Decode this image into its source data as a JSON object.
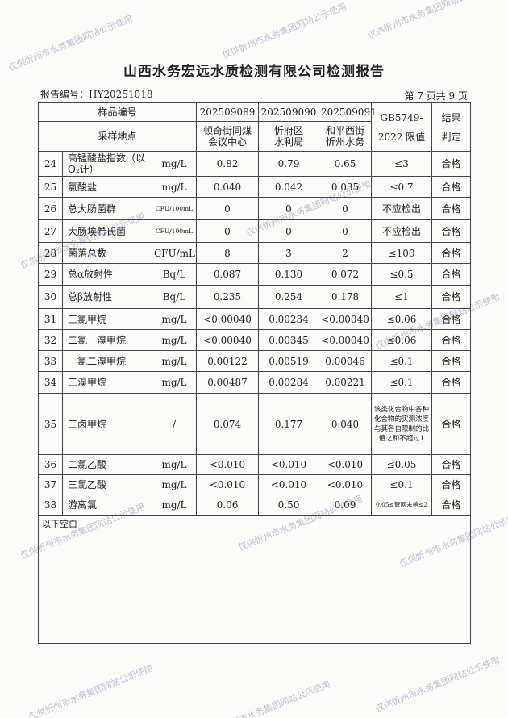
{
  "title": "山西水务宏远水质检测有限公司检测报告",
  "report_no": "报告编号：HY20251018",
  "page_info": "第 7 页共 9 页",
  "watermark": "仅供忻州市水务集团网站公示使用",
  "header": {
    "sample_no_label": "样品编号",
    "site_label": "采样地点",
    "samples": [
      "202509089",
      "202509090",
      "202509091"
    ],
    "sites": [
      [
        "顿奇街同煤",
        "会议中心"
      ],
      [
        "忻府区",
        "水利局"
      ],
      [
        "和平西街",
        "忻州水务"
      ]
    ],
    "limit_label": [
      "GB5749-",
      "2022 限值"
    ],
    "result_label": [
      "结果",
      "判定"
    ]
  },
  "rows": [
    {
      "no": "24",
      "name": "高锰酸盐指数（以O₂计）",
      "unit": "mg/L",
      "v": [
        "0.82",
        "0.79",
        "0.65"
      ],
      "limit": "≤3",
      "result": "合格"
    },
    {
      "no": "25",
      "name": "氯酸盐",
      "unit": "mg/L",
      "v": [
        "0.040",
        "0.042",
        "0.035"
      ],
      "limit": "≤0.7",
      "result": "合格"
    },
    {
      "no": "26",
      "name": "总大肠菌群",
      "unit": "CFU/100mL",
      "v": [
        "0",
        "0",
        "0"
      ],
      "limit": "不应检出",
      "result": "合格"
    },
    {
      "no": "27",
      "name": "大肠埃希氏菌",
      "unit": "CFU/100mL",
      "v": [
        "0",
        "0",
        "0"
      ],
      "limit": "不应检出",
      "result": "合格"
    },
    {
      "no": "28",
      "name": "菌落总数",
      "unit": "CFU/mL",
      "v": [
        "8",
        "3",
        "2"
      ],
      "limit": "≤100",
      "result": "合格"
    },
    {
      "no": "29",
      "name": "总α放射性",
      "unit": "Bq/L",
      "v": [
        "0.087",
        "0.130",
        "0.072"
      ],
      "limit": "≤0.5",
      "result": "合格"
    },
    {
      "no": "30",
      "name": "总β放射性",
      "unit": "Bq/L",
      "v": [
        "0.235",
        "0.254",
        "0.178"
      ],
      "limit": "≤1",
      "result": "合格"
    },
    {
      "no": "31",
      "name": "三氯甲烷",
      "unit": "mg/L",
      "v": [
        "<0.00040",
        "0.00234",
        "<0.00040"
      ],
      "limit": "≤0.06",
      "result": "合格"
    },
    {
      "no": "32",
      "name": "二氯一溴甲烷",
      "unit": "mg/L",
      "v": [
        "<0.00040",
        "0.00345",
        "<0.00040"
      ],
      "limit": "≤0.06",
      "result": "合格"
    },
    {
      "no": "33",
      "name": "一氯二溴甲烷",
      "unit": "mg/L",
      "v": [
        "0.00122",
        "0.00519",
        "0.00046"
      ],
      "limit": "≤0.1",
      "result": "合格"
    },
    {
      "no": "34",
      "name": "三溴甲烷",
      "unit": "mg/L",
      "v": [
        "0.00487",
        "0.00284",
        "0.00221"
      ],
      "limit": "≤0.1",
      "result": "合格"
    },
    {
      "no": "35",
      "name": "三卤甲烷",
      "unit": "/",
      "v": [
        "0.074",
        "0.177",
        "0.040"
      ],
      "limit": "该类化合物中各种化合物的实测浓度与其各自限制的比值之和不超过1",
      "result": "合格"
    },
    {
      "no": "36",
      "name": "二氯乙酸",
      "unit": "mg/L",
      "v": [
        "<0.010",
        "<0.010",
        "<0.010"
      ],
      "limit": "≤0.05",
      "result": "合格"
    },
    {
      "no": "37",
      "name": "三氯乙酸",
      "unit": "mg/L",
      "v": [
        "<0.010",
        "<0.010",
        "<0.010"
      ],
      "limit": "≤0.1",
      "result": "合格"
    },
    {
      "no": "38",
      "name": "游离氯",
      "unit": "mg/L",
      "v": [
        "0.06",
        "0.50",
        "0.09"
      ],
      "limit": "0.05≤管网末梢≤2",
      "result": "合格"
    }
  ],
  "footer_note": "以下空白"
}
